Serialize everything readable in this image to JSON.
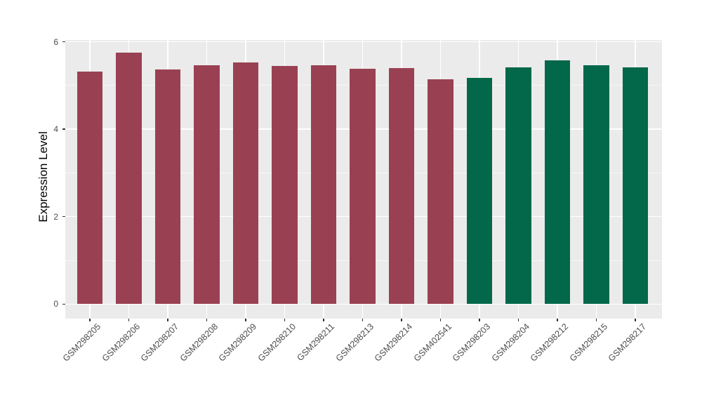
{
  "chart_data": {
    "type": "bar",
    "title": "",
    "xlabel": "",
    "ylabel": "Expression Level",
    "ylim": [
      0,
      6
    ],
    "yticks": [
      0,
      2,
      4,
      6
    ],
    "grid": "on",
    "legend_position": "none",
    "panel_background": "#ebebeb",
    "gridline_color": "#ffffff",
    "group_colors": {
      "group1": "#994152",
      "group2": "#03684a"
    },
    "categories": [
      "GSM298205",
      "GSM298206",
      "GSM298207",
      "GSM298208",
      "GSM298209",
      "GSM298210",
      "GSM298211",
      "GSM298213",
      "GSM298214",
      "GSM402541",
      "GSM298203",
      "GSM298204",
      "GSM298212",
      "GSM298215",
      "GSM298217"
    ],
    "values": [
      5.31,
      5.75,
      5.37,
      5.46,
      5.53,
      5.45,
      5.46,
      5.38,
      5.4,
      5.14,
      5.17,
      5.42,
      5.57,
      5.46,
      5.41
    ],
    "bar_colors": [
      "#994152",
      "#994152",
      "#994152",
      "#994152",
      "#994152",
      "#994152",
      "#994152",
      "#994152",
      "#994152",
      "#994152",
      "#03684a",
      "#03684a",
      "#03684a",
      "#03684a",
      "#03684a"
    ]
  }
}
